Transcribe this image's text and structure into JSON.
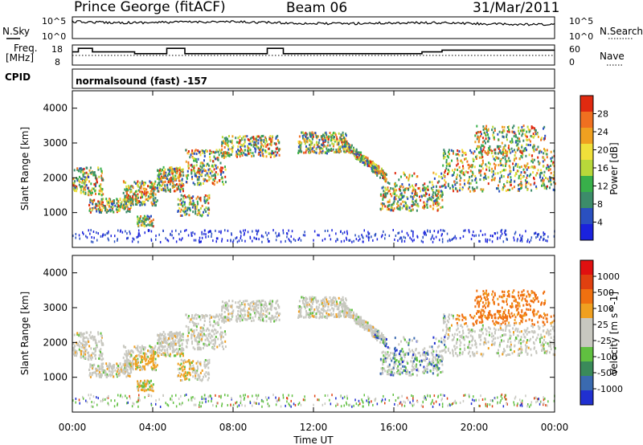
{
  "header": {
    "station": "Prince George (fitACF)",
    "beam": "Beam 06",
    "date": "31/Mar/2011"
  },
  "panels_top": {
    "nsky_label": "N.Sky",
    "nsky_ticks": [
      "10^5",
      "10^0"
    ],
    "nsearch_label": "N.Search",
    "nsearch_ticks": [
      "10^5",
      "10^0"
    ],
    "freq_label": "Freq.",
    "freq_unit": "[MHz]",
    "freq_ticks": [
      "18",
      "8"
    ],
    "nave_label": "Nave",
    "nave_ticks": [
      "60",
      "0"
    ],
    "cpid_label": "CPID",
    "cpid_value": "normalsound (fast) -157"
  },
  "colors": {
    "power_scale": [
      "#1a22dd",
      "#2a50c0",
      "#3c8c6a",
      "#38b04a",
      "#b8d83a",
      "#f0e03a",
      "#f0a020",
      "#f07020",
      "#e02a10"
    ],
    "velocity_scale": [
      "#2030d0",
      "#3a6ab0",
      "#3a8a5a",
      "#60c040",
      "#c8c8c0",
      "#c8c8c0",
      "#f0a020",
      "#f07010",
      "#e04010",
      "#e01010"
    ]
  },
  "chart_data": [
    {
      "type": "heatmap",
      "name": "power",
      "ylabel": "Slant Range [km]",
      "yticks": [
        "1000",
        "2000",
        "3000",
        "4000"
      ],
      "ylim": [
        0,
        4500
      ],
      "colorbar_label": "Power [dB]",
      "colorbar_ticks": [
        "4",
        "8",
        "12",
        "16",
        "20",
        "24",
        "28"
      ],
      "colorbar_range": [
        0,
        32
      ]
    },
    {
      "type": "heatmap",
      "name": "velocity",
      "ylabel": "Slant Range [km]",
      "yticks": [
        "1000",
        "2000",
        "3000",
        "4000"
      ],
      "ylim": [
        0,
        4500
      ],
      "colorbar_label": "Velocity [m s^-1]",
      "colorbar_ticks": [
        "-1000",
        "-500",
        "-100",
        "-25",
        "25",
        "100",
        "500",
        "1000"
      ]
    }
  ],
  "x_axis": {
    "label": "Time UT",
    "ticks": [
      "00:00",
      "04:00",
      "08:00",
      "12:00",
      "16:00",
      "20:00",
      "00:00"
    ],
    "range_hours": [
      0,
      24
    ]
  },
  "frequency_steps": [
    {
      "t0": 0,
      "t1": 0.3,
      "f": 15
    },
    {
      "t0": 0.3,
      "t1": 1.0,
      "f": 17
    },
    {
      "t0": 1.0,
      "t1": 3.1,
      "f": 15
    },
    {
      "t0": 3.1,
      "t1": 4.7,
      "f": 14
    },
    {
      "t0": 4.7,
      "t1": 5.6,
      "f": 17
    },
    {
      "t0": 5.6,
      "t1": 9.7,
      "f": 14
    },
    {
      "t0": 9.7,
      "t1": 10.5,
      "f": 17
    },
    {
      "t0": 10.5,
      "t1": 17.4,
      "f": 14
    },
    {
      "t0": 17.4,
      "t1": 18.4,
      "f": 15
    },
    {
      "t0": 18.4,
      "t1": 24,
      "f": 16
    }
  ]
}
